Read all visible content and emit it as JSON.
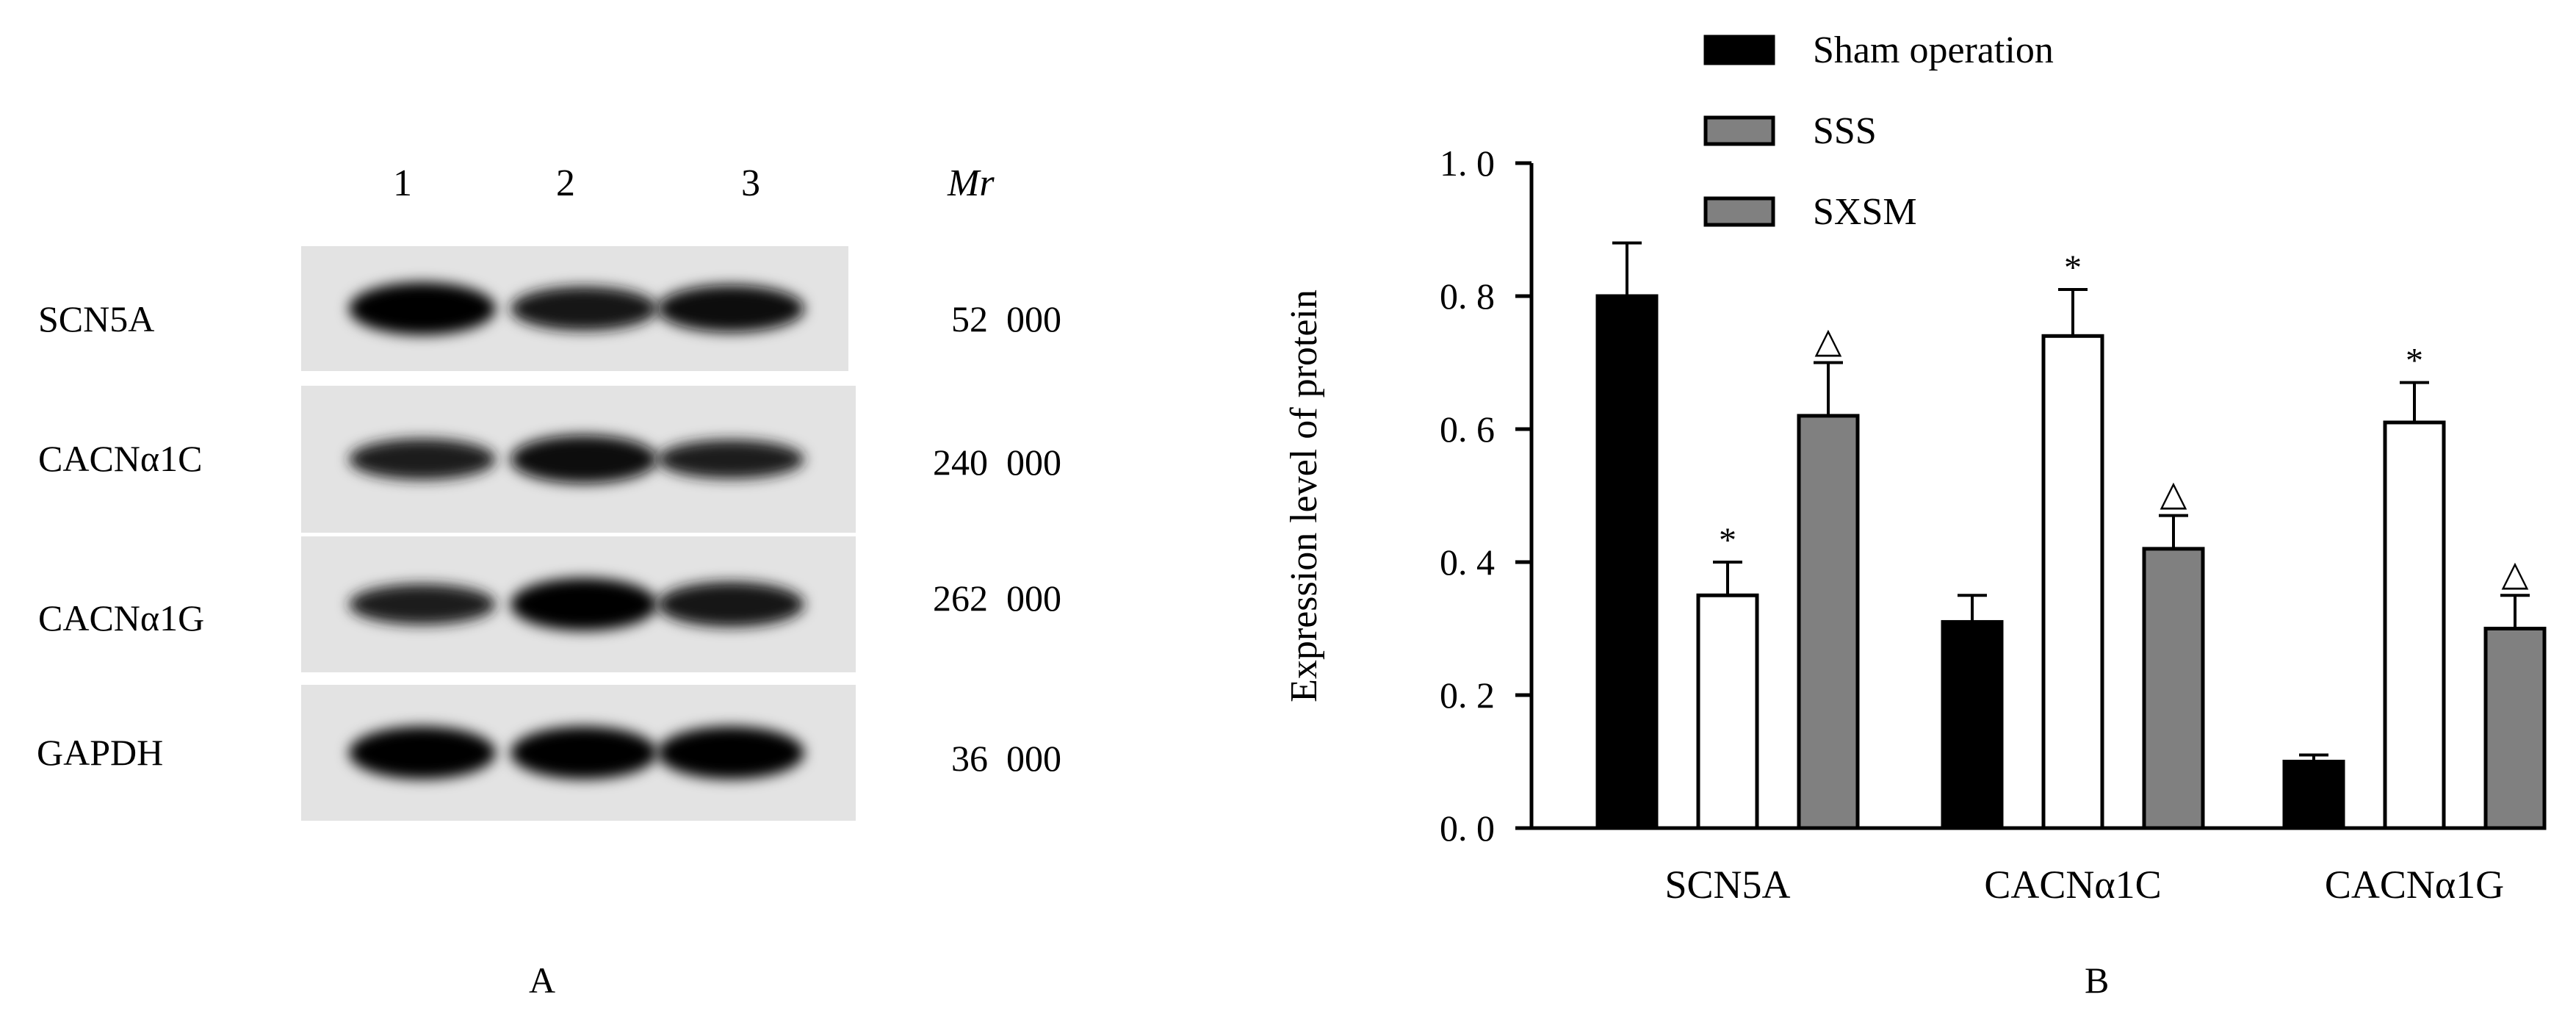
{
  "panel_a": {
    "letter": "A",
    "lanes": [
      "1",
      "2",
      "3"
    ],
    "mr_header": "Mr",
    "rows": [
      {
        "protein": "SCN5A",
        "mw": "52  000",
        "intensity": [
          1.0,
          0.72,
          0.82
        ]
      },
      {
        "protein": "CACNα1C",
        "mw": "240  000",
        "intensity": [
          0.62,
          0.85,
          0.55
        ]
      },
      {
        "protein": "CACNα1G",
        "mw": "262  000",
        "intensity": [
          0.6,
          1.0,
          0.75
        ]
      },
      {
        "protein": "GAPDH",
        "mw": "36  000",
        "intensity": [
          1.0,
          1.0,
          1.0
        ]
      }
    ]
  },
  "panel_b": {
    "letter": "B"
  },
  "chart_data": {
    "type": "bar",
    "ylabel": "Expression level of protein",
    "xlabel": "",
    "ylim": [
      0,
      1.0
    ],
    "yticks": [
      "0. 0",
      "0. 2",
      "0. 4",
      "0. 6",
      "0. 8",
      "1. 0"
    ],
    "ytick_values": [
      0,
      0.2,
      0.4,
      0.6,
      0.8,
      1.0
    ],
    "categories": [
      "SCN5A",
      "CACNα1C",
      "CACNα1G"
    ],
    "legend_position": "top",
    "grid": false,
    "series": [
      {
        "name": "Sham operation",
        "color": "#000000",
        "values": [
          0.8,
          0.31,
          0.1
        ],
        "errors": [
          0.08,
          0.04,
          0.01
        ],
        "marks": [
          "",
          "",
          ""
        ]
      },
      {
        "name": "SSS",
        "color": "#ffffff",
        "values": [
          0.35,
          0.74,
          0.61
        ],
        "errors": [
          0.05,
          0.07,
          0.06
        ],
        "marks": [
          "*",
          "*",
          "*"
        ]
      },
      {
        "name": "SXSM",
        "color": "#808080",
        "values": [
          0.62,
          0.42,
          0.3
        ],
        "errors": [
          0.08,
          0.05,
          0.05
        ],
        "marks": [
          "△",
          "△",
          "△"
        ]
      }
    ],
    "legend_swatch_colors": [
      "#000000",
      "#808080",
      "#808080"
    ]
  }
}
